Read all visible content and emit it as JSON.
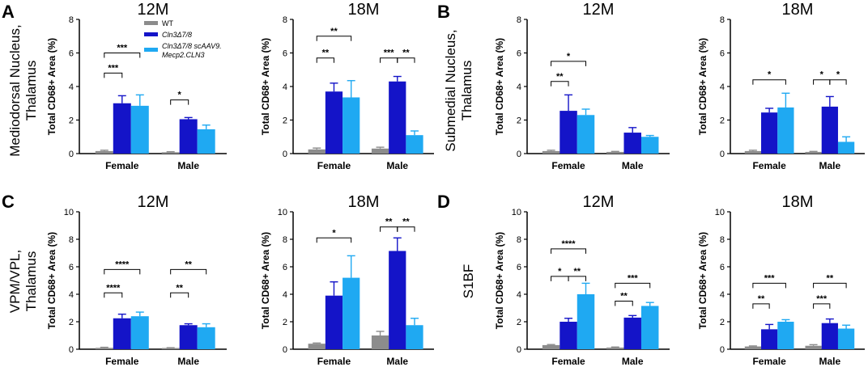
{
  "figure": {
    "panel_labels": [
      "A",
      "B",
      "C",
      "D"
    ],
    "row_labels": {
      "A": [
        "Mediodorsal Nucleus,",
        "Thalamus"
      ],
      "B": [
        "Submedial Nucleus,",
        "Thalamus"
      ],
      "C": [
        "VPM/VPL,",
        "Thalamus"
      ],
      "D": [
        "S1BF"
      ]
    },
    "legend": {
      "wt": "WT",
      "cln3": "Cln3Δ7/8",
      "treated_line1": "Cln3Δ7/8 scAAV9.",
      "treated_line2": "Mecp2.CLN3"
    },
    "colors": {
      "WT": "#8c8c8c",
      "Cln3": "#1414c8",
      "Treated": "#1fa9f2"
    }
  },
  "chart_data": [
    {
      "panel": "A",
      "type": "bar",
      "title": "12M",
      "ylabel": "Total CD68+ Area (%)",
      "ylim": [
        0,
        8
      ],
      "yticks": [
        "0",
        "2",
        "4",
        "6",
        "8"
      ],
      "categories": [
        "Female",
        "Male"
      ],
      "series": [
        {
          "name": "WT",
          "values": [
            0.15,
            0.08
          ],
          "errors": [
            0.05,
            0.03
          ]
        },
        {
          "name": "Cln3Δ7/8",
          "values": [
            3.0,
            2.05
          ],
          "errors": [
            0.45,
            0.1
          ]
        },
        {
          "name": "Cln3Δ7/8 scAAV9.Mecp2.CLN3",
          "values": [
            2.85,
            1.45
          ],
          "errors": [
            0.65,
            0.25
          ]
        }
      ],
      "annotations": [
        {
          "label": "***",
          "cat": 0,
          "from": 0,
          "to": 1,
          "y": 4.8
        },
        {
          "label": "***",
          "cat": 0,
          "from": 0,
          "to": 2,
          "y": 6.0
        },
        {
          "label": "*",
          "cat": 1,
          "from": 0,
          "to": 1,
          "y": 3.2
        }
      ]
    },
    {
      "panel": "A",
      "type": "bar",
      "title": "18M",
      "ylabel": "Total CD68+ Area (%)",
      "ylim": [
        0,
        8
      ],
      "yticks": [
        "0",
        "2",
        "4",
        "6",
        "8"
      ],
      "categories": [
        "Female",
        "Male"
      ],
      "series": [
        {
          "name": "WT",
          "values": [
            0.25,
            0.3
          ],
          "errors": [
            0.08,
            0.08
          ]
        },
        {
          "name": "Cln3Δ7/8",
          "values": [
            3.7,
            4.3
          ],
          "errors": [
            0.5,
            0.3
          ]
        },
        {
          "name": "Cln3Δ7/8 scAAV9.Mecp2.CLN3",
          "values": [
            3.35,
            1.1
          ],
          "errors": [
            1.0,
            0.25
          ]
        }
      ],
      "annotations": [
        {
          "label": "**",
          "cat": 0,
          "from": 0,
          "to": 1,
          "y": 5.7
        },
        {
          "label": "**",
          "cat": 0,
          "from": 0,
          "to": 2,
          "y": 7.0
        },
        {
          "label": "***",
          "cat": 1,
          "from": 0,
          "to": 1,
          "y": 5.7
        },
        {
          "label": "**",
          "cat": 1,
          "from": 1,
          "to": 2,
          "y": 5.7
        }
      ]
    },
    {
      "panel": "B",
      "type": "bar",
      "title": "12M",
      "ylabel": "Total CD68+ Area (%)",
      "ylim": [
        0,
        8
      ],
      "yticks": [
        "0",
        "2",
        "4",
        "6",
        "8"
      ],
      "categories": [
        "Female",
        "Male"
      ],
      "series": [
        {
          "name": "WT",
          "values": [
            0.15,
            0.1
          ],
          "errors": [
            0.05,
            0.03
          ]
        },
        {
          "name": "Cln3Δ7/8",
          "values": [
            2.55,
            1.25
          ],
          "errors": [
            0.95,
            0.3
          ]
        },
        {
          "name": "Cln3Δ7/8 scAAV9.Mecp2.CLN3",
          "values": [
            2.3,
            1.0
          ],
          "errors": [
            0.35,
            0.08
          ]
        }
      ],
      "annotations": [
        {
          "label": "**",
          "cat": 0,
          "from": 0,
          "to": 1,
          "y": 4.3
        },
        {
          "label": "*",
          "cat": 0,
          "from": 0,
          "to": 2,
          "y": 5.5
        }
      ]
    },
    {
      "panel": "B",
      "type": "bar",
      "title": "18M",
      "ylabel": "Total CD68+ Area (%)",
      "ylim": [
        0,
        8
      ],
      "yticks": [
        "0",
        "2",
        "4",
        "6",
        "8"
      ],
      "categories": [
        "Female",
        "Male"
      ],
      "series": [
        {
          "name": "WT",
          "values": [
            0.15,
            0.1
          ],
          "errors": [
            0.05,
            0.03
          ]
        },
        {
          "name": "Cln3Δ7/8",
          "values": [
            2.45,
            2.8
          ],
          "errors": [
            0.25,
            0.6
          ]
        },
        {
          "name": "Cln3Δ7/8 scAAV9.Mecp2.CLN3",
          "values": [
            2.75,
            0.7
          ],
          "errors": [
            0.85,
            0.3
          ]
        }
      ],
      "annotations": [
        {
          "label": "*",
          "cat": 0,
          "from": 0,
          "to": 2,
          "y": 4.4
        },
        {
          "label": "*",
          "cat": 1,
          "from": 0,
          "to": 1,
          "y": 4.4
        },
        {
          "label": "*",
          "cat": 1,
          "from": 1,
          "to": 2,
          "y": 4.4
        }
      ]
    },
    {
      "panel": "C",
      "type": "bar",
      "title": "12M",
      "ylabel": "Total CD68+ Area (%)",
      "ylim": [
        0,
        10
      ],
      "yticks": [
        "0",
        "2",
        "4",
        "6",
        "8",
        "10"
      ],
      "categories": [
        "Female",
        "Male"
      ],
      "series": [
        {
          "name": "WT",
          "values": [
            0.1,
            0.08
          ],
          "errors": [
            0.04,
            0.03
          ]
        },
        {
          "name": "Cln3Δ7/8",
          "values": [
            2.25,
            1.75
          ],
          "errors": [
            0.3,
            0.1
          ]
        },
        {
          "name": "Cln3Δ7/8 scAAV9.Mecp2.CLN3",
          "values": [
            2.4,
            1.6
          ],
          "errors": [
            0.3,
            0.25
          ]
        }
      ],
      "annotations": [
        {
          "label": "****",
          "cat": 0,
          "from": 0,
          "to": 1,
          "y": 4.1
        },
        {
          "label": "****",
          "cat": 0,
          "from": 0,
          "to": 2,
          "y": 5.8
        },
        {
          "label": "**",
          "cat": 1,
          "from": 0,
          "to": 1,
          "y": 4.1
        },
        {
          "label": "**",
          "cat": 1,
          "from": 0,
          "to": 2,
          "y": 5.8
        }
      ]
    },
    {
      "panel": "C",
      "type": "bar",
      "title": "18M",
      "ylabel": "Total CD68+ Area (%)",
      "ylim": [
        0,
        10
      ],
      "yticks": [
        "0",
        "2",
        "4",
        "6",
        "8",
        "10"
      ],
      "categories": [
        "Female",
        "Male"
      ],
      "series": [
        {
          "name": "WT",
          "values": [
            0.4,
            1.0
          ],
          "errors": [
            0.05,
            0.3
          ]
        },
        {
          "name": "Cln3Δ7/8",
          "values": [
            3.9,
            7.15
          ],
          "errors": [
            1.0,
            0.95
          ]
        },
        {
          "name": "Cln3Δ7/8 scAAV9.Mecp2.CLN3",
          "values": [
            5.2,
            1.75
          ],
          "errors": [
            1.6,
            0.5
          ]
        }
      ],
      "annotations": [
        {
          "label": "*",
          "cat": 0,
          "from": 0,
          "to": 2,
          "y": 8.1
        },
        {
          "label": "**",
          "cat": 1,
          "from": 0,
          "to": 1,
          "y": 8.9
        },
        {
          "label": "**",
          "cat": 1,
          "from": 1,
          "to": 2,
          "y": 8.9
        }
      ]
    },
    {
      "panel": "D",
      "type": "bar",
      "title": "12M",
      "ylabel": "Total CD68+ Area (%)",
      "ylim": [
        0,
        10
      ],
      "yticks": [
        "0",
        "2",
        "4",
        "6",
        "8",
        "10"
      ],
      "categories": [
        "Female",
        "Male"
      ],
      "series": [
        {
          "name": "WT",
          "values": [
            0.3,
            0.12
          ],
          "errors": [
            0.04,
            0.04
          ]
        },
        {
          "name": "Cln3Δ7/8",
          "values": [
            2.0,
            2.3
          ],
          "errors": [
            0.25,
            0.15
          ]
        },
        {
          "name": "Cln3Δ7/8 scAAV9.Mecp2.CLN3",
          "values": [
            4.0,
            3.15
          ],
          "errors": [
            0.8,
            0.25
          ]
        }
      ],
      "annotations": [
        {
          "label": "*",
          "cat": 0,
          "from": 0,
          "to": 1,
          "y": 5.3
        },
        {
          "label": "**",
          "cat": 0,
          "from": 1,
          "to": 2,
          "y": 5.3
        },
        {
          "label": "****",
          "cat": 0,
          "from": 0,
          "to": 2,
          "y": 7.3
        },
        {
          "label": "**",
          "cat": 1,
          "from": 0,
          "to": 1,
          "y": 3.5
        },
        {
          "label": "***",
          "cat": 1,
          "from": 0,
          "to": 2,
          "y": 4.8
        }
      ]
    },
    {
      "panel": "D",
      "type": "bar",
      "title": "18M",
      "ylabel": "Total CD68+ Area (%)",
      "ylim": [
        0,
        10
      ],
      "yticks": [
        "0",
        "2",
        "4",
        "6",
        "8",
        "10"
      ],
      "categories": [
        "Female",
        "Male"
      ],
      "series": [
        {
          "name": "WT",
          "values": [
            0.2,
            0.25
          ],
          "errors": [
            0.04,
            0.08
          ]
        },
        {
          "name": "Cln3Δ7/8",
          "values": [
            1.45,
            1.9
          ],
          "errors": [
            0.35,
            0.3
          ]
        },
        {
          "name": "Cln3Δ7/8 scAAV9.Mecp2.CLN3",
          "values": [
            2.0,
            1.5
          ],
          "errors": [
            0.15,
            0.25
          ]
        }
      ],
      "annotations": [
        {
          "label": "**",
          "cat": 0,
          "from": 0,
          "to": 1,
          "y": 3.3
        },
        {
          "label": "***",
          "cat": 0,
          "from": 0,
          "to": 2,
          "y": 4.8
        },
        {
          "label": "***",
          "cat": 1,
          "from": 0,
          "to": 1,
          "y": 3.3
        },
        {
          "label": "**",
          "cat": 1,
          "from": 0,
          "to": 2,
          "y": 4.8
        }
      ]
    }
  ]
}
